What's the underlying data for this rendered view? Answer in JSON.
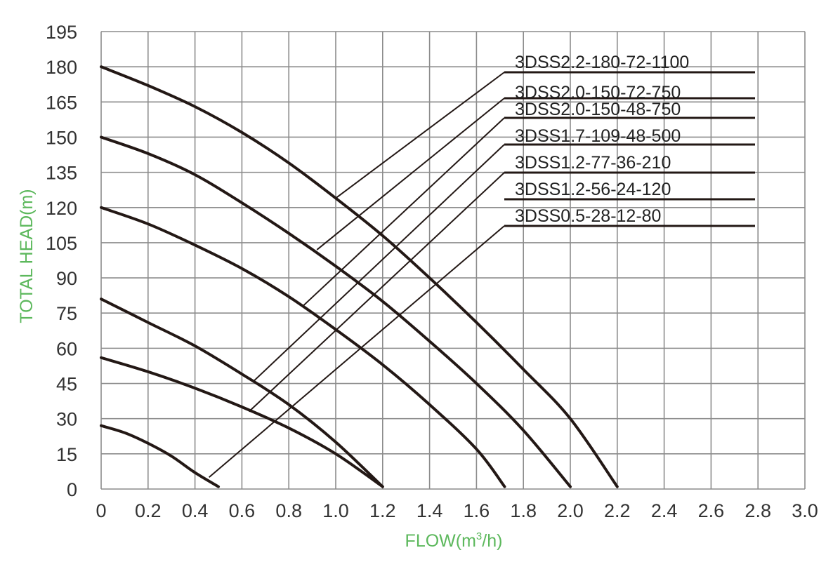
{
  "chart_data": {
    "type": "line",
    "title": "",
    "xlabel": "FLOW(m",
    "xlabel_sup": "3",
    "xlabel_tail": "/h)",
    "ylabel": "TOTAL HEAD(m)",
    "xlim": [
      0,
      3.0
    ],
    "ylim": [
      0,
      195
    ],
    "x_ticks": [
      "0",
      "0.2",
      "0.4",
      "0.6",
      "0.8",
      "1.0",
      "1.2",
      "1.4",
      "1.6",
      "1.8",
      "2.0",
      "2.2",
      "2.4",
      "2.6",
      "2.8",
      "3.0"
    ],
    "y_ticks": [
      "0",
      "15",
      "30",
      "45",
      "60",
      "75",
      "90",
      "105",
      "120",
      "135",
      "150",
      "165",
      "180",
      "195"
    ],
    "grid": true,
    "series": [
      {
        "name": "3DSS2.2-180-72-1100",
        "x": [
          0,
          0.2,
          0.4,
          0.6,
          0.8,
          1.0,
          1.2,
          1.4,
          1.6,
          1.8,
          2.0,
          2.2
        ],
        "y": [
          180,
          172,
          163,
          152,
          139,
          124,
          108,
          90,
          71,
          51,
          30,
          1
        ],
        "leader": [
          1.0,
          124
        ]
      },
      {
        "name": "3DSS2.0-150-72-750",
        "x": [
          0,
          0.2,
          0.4,
          0.6,
          0.8,
          1.0,
          1.2,
          1.4,
          1.6,
          1.8,
          2.0
        ],
        "y": [
          150,
          143,
          134,
          122,
          109,
          95,
          80,
          63,
          45,
          25,
          1
        ],
        "leader": [
          0.92,
          102
        ]
      },
      {
        "name": "3DSS2.0-150-48-750",
        "x": [
          0,
          0.2,
          0.4,
          0.6,
          0.8,
          1.0,
          1.2,
          1.4,
          1.6,
          1.72
        ],
        "y": [
          120,
          113,
          104,
          94,
          82,
          68,
          53,
          36,
          17,
          1
        ],
        "leader": [
          0.86,
          78
        ]
      },
      {
        "name": "3DSS1.7-109-48-500",
        "x": [
          0,
          0.2,
          0.4,
          0.6,
          0.8,
          1.0,
          1.2
        ],
        "y": [
          81,
          71,
          61,
          49,
          36,
          20,
          1
        ],
        "leader": [
          0.65,
          46
        ]
      },
      {
        "name": "3DSS1.2-77-36-210",
        "x": [
          0,
          0.2,
          0.4,
          0.6,
          0.8,
          1.0,
          1.2
        ],
        "y": [
          56,
          50,
          43,
          35,
          26,
          15,
          1
        ],
        "leader": [
          0.63,
          33
        ]
      },
      {
        "name": "3DSS1.2-56-24-120",
        "x": [
          0,
          0.1,
          0.2,
          0.3,
          0.4,
          0.5
        ],
        "y": [
          27,
          24,
          19.5,
          14,
          7,
          1
        ],
        "leader": [
          0.46,
          5
        ]
      },
      {
        "name": "3DSS0.5-28-12-80",
        "x": [],
        "y": [],
        "leader": []
      }
    ]
  }
}
